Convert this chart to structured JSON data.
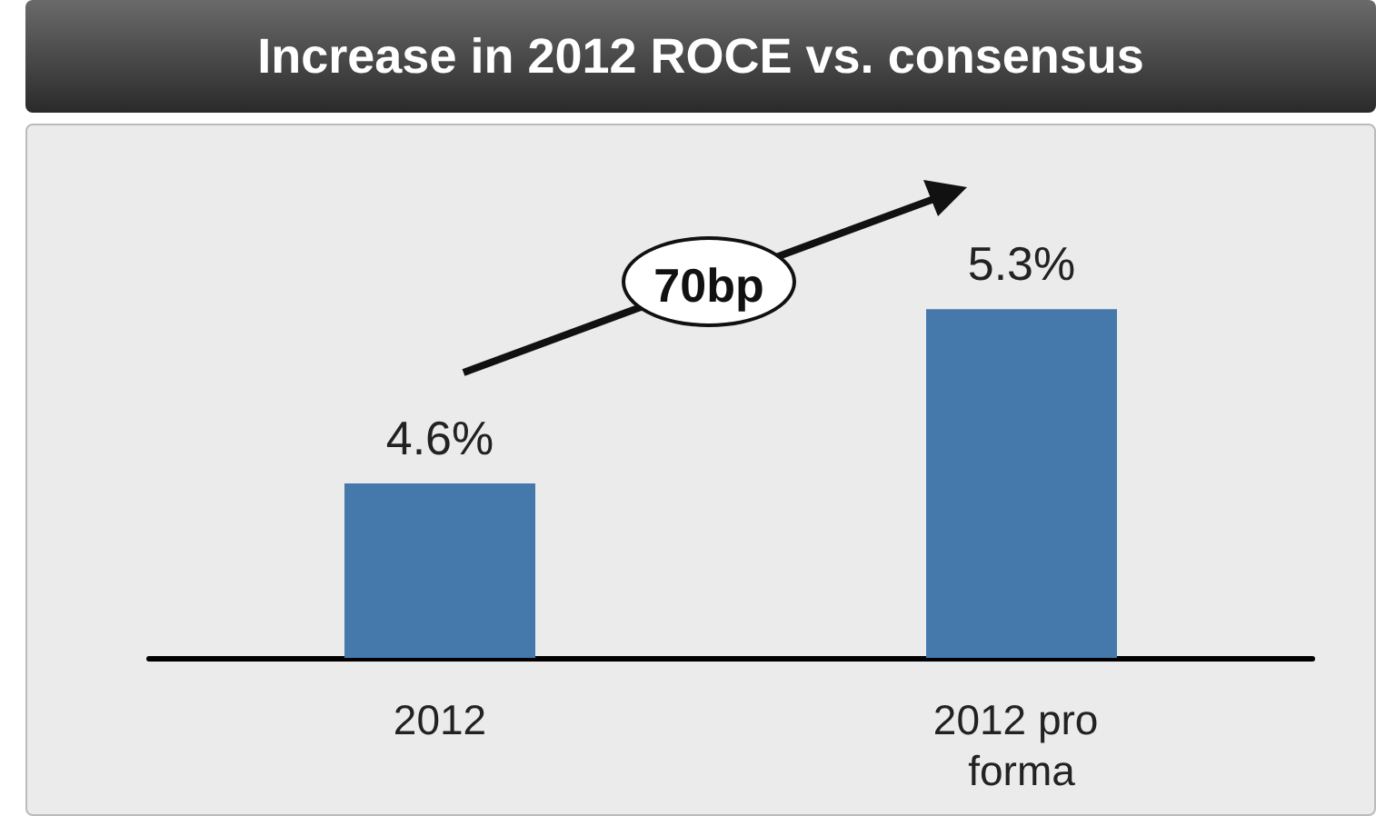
{
  "chart_data": {
    "type": "bar",
    "title": "Increase in 2012 ROCE vs. consensus",
    "categories": [
      "2012",
      "2012 pro forma"
    ],
    "values": [
      4.6,
      5.3
    ],
    "value_labels": [
      "4.6%",
      "5.3%"
    ],
    "color": "#4579ac",
    "ylim": [
      3.9,
      5.6
    ],
    "annotations": [
      "70bp"
    ]
  }
}
